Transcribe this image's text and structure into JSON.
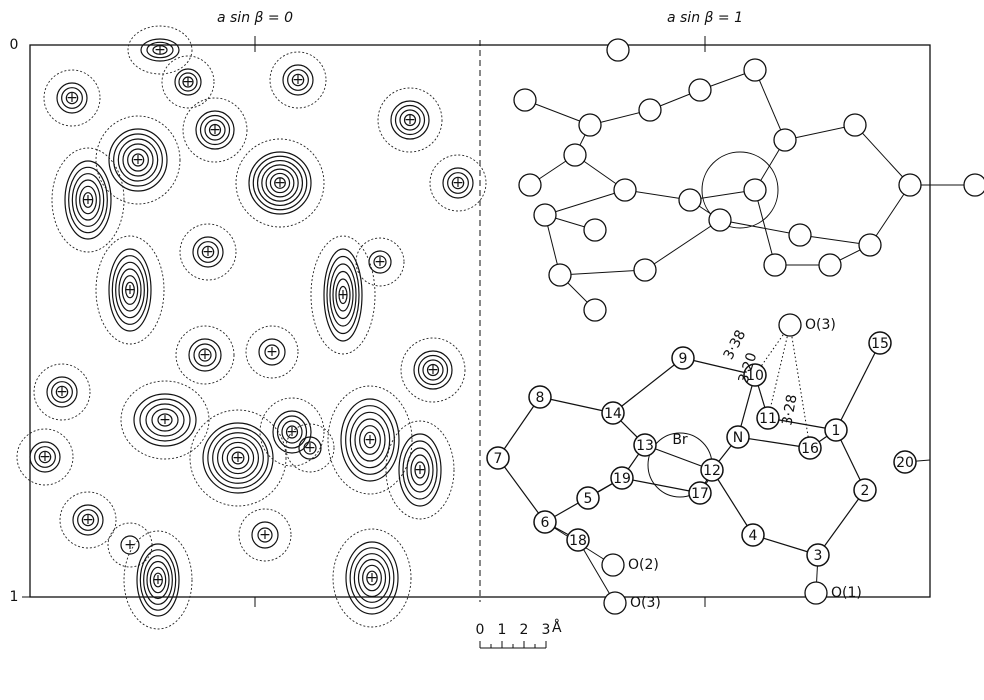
{
  "header": {
    "left_label": "a sin β = 0",
    "right_label": "a sin β = 1"
  },
  "axis": {
    "top": "0",
    "bottom": "1"
  },
  "atoms": [
    "1",
    "2",
    "3",
    "4",
    "5",
    "6",
    "7",
    "8",
    "9",
    "10",
    "11",
    "12",
    "13",
    "14",
    "15",
    "16",
    "17",
    "18",
    "19",
    "20",
    "N"
  ],
  "bromine": "Br",
  "oxygens": [
    "O(3)",
    "O(2)",
    "O(1)",
    "O(3)"
  ],
  "distances": [
    "3·38",
    "3·20",
    "3·28"
  ],
  "scale": {
    "ticks": [
      "0",
      "1",
      "2",
      "3"
    ],
    "unit": "Å"
  }
}
